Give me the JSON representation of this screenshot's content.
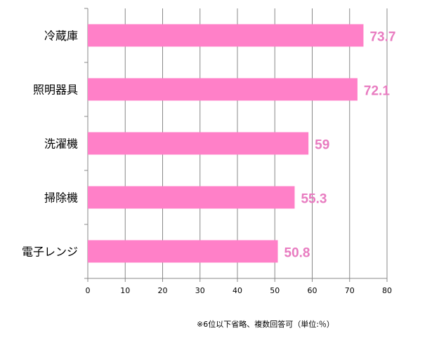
{
  "chart_data": {
    "type": "bar",
    "orientation": "horizontal",
    "categories": [
      "冷蔵庫",
      "照明器具",
      "洗濯機",
      "掃除機",
      "電子レンジ"
    ],
    "values": [
      73.7,
      72.1,
      59,
      55.3,
      50.8
    ],
    "value_labels": [
      "73.7",
      "72.1",
      "59",
      "55.3",
      "50.8"
    ],
    "x_ticks": [
      0,
      10,
      20,
      30,
      40,
      50,
      60,
      70,
      80
    ],
    "xlim": [
      0,
      80
    ],
    "grid": true,
    "legend": "none",
    "colors": {
      "bar": "#ff80c8",
      "value_label": "#e87bc0",
      "grid": "#888888"
    }
  },
  "footnote": "※6位以下省略、複数回答可（単位:％）"
}
